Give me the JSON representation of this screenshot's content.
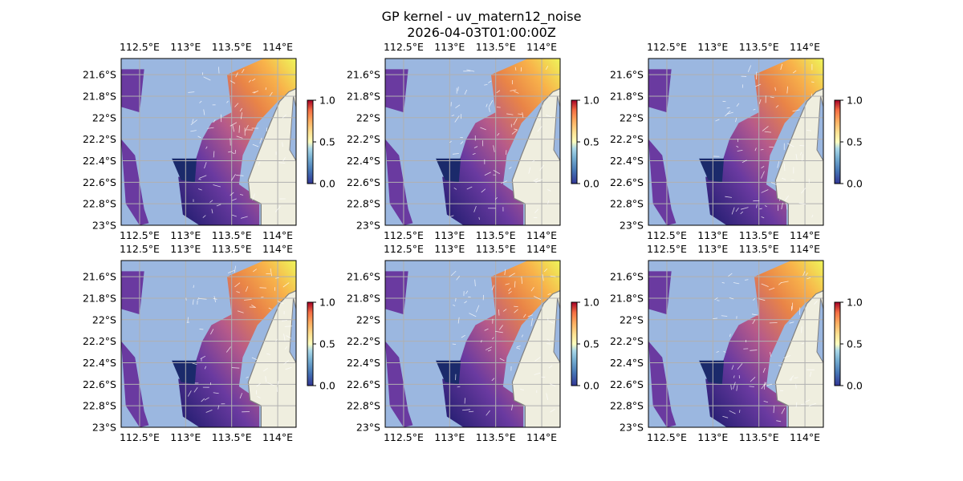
{
  "figure": {
    "title_line1": "GP kernel - uv_matern12_noise",
    "title_line2": "2026-04-03T01:00:00Z"
  },
  "chart_data": {
    "type": "heatmap",
    "panel_count": 6,
    "layout": "2 rows x 3 columns",
    "x_ticks": [
      "112.5°E",
      "113°E",
      "113.5°E",
      "114°E"
    ],
    "x_tick_values": [
      112.5,
      113.0,
      113.5,
      114.0
    ],
    "y_ticks": [
      "21.6°S",
      "21.8°S",
      "22°S",
      "22.2°S",
      "22.4°S",
      "22.6°S",
      "22.8°S",
      "23°S"
    ],
    "y_tick_values": [
      -21.6,
      -21.8,
      -22.0,
      -22.2,
      -22.4,
      -22.6,
      -22.8,
      -23.0
    ],
    "lon_range": [
      112.3,
      114.2
    ],
    "lat_range": [
      -23.0,
      -21.45
    ],
    "colorbar": {
      "range": [
        0.0,
        1.0
      ],
      "ticks": [
        "0.0",
        "0.5",
        "1.0"
      ],
      "colormap": "RdYlBu_r"
    },
    "field_colormap": "plasma",
    "ocean_color": "#9bb7e0",
    "land_color": "#efeedf",
    "grid": true,
    "vector_overlay": "white current arrows"
  }
}
